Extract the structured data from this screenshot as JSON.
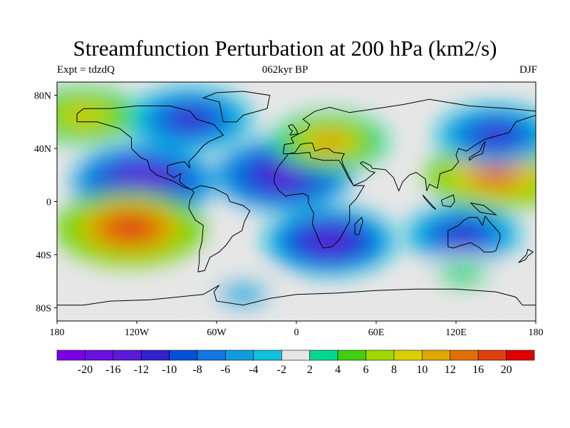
{
  "title": "Streamfunction Perturbation at 200 hPa (km2/s)",
  "left_string": "Expt = tdzdQ",
  "center_string": "062kyr BP",
  "right_string": "DJF",
  "map": {
    "projection": "cylindrical equidistant",
    "lon_range": [
      -180,
      180
    ],
    "lat_range": [
      -90,
      90
    ],
    "coastlines": true
  },
  "lat_ticks": [
    {
      "value": 80,
      "label": "80N"
    },
    {
      "value": 40,
      "label": "40N"
    },
    {
      "value": 0,
      "label": "0"
    },
    {
      "value": -40,
      "label": "40S"
    },
    {
      "value": -80,
      "label": "80S"
    }
  ],
  "lon_ticks": [
    {
      "value": -180,
      "label": "180"
    },
    {
      "value": -120,
      "label": "120W"
    },
    {
      "value": -60,
      "label": "60W"
    },
    {
      "value": 0,
      "label": "0"
    },
    {
      "value": 60,
      "label": "60E"
    },
    {
      "value": 120,
      "label": "120E"
    },
    {
      "value": 180,
      "label": "180"
    }
  ],
  "colorbar": {
    "colors": [
      "#7b00e3",
      "#6a10e0",
      "#5a1ad8",
      "#3020d0",
      "#0050d8",
      "#1078e0",
      "#109ce0",
      "#10c0e0",
      "#e6e6e6",
      "#00d890",
      "#40d010",
      "#a0d800",
      "#d8d000",
      "#e0a800",
      "#e07000",
      "#e04010",
      "#e00000"
    ],
    "labels": [
      "-20",
      "-16",
      "-12",
      "-10",
      "-8",
      "-6",
      "-4",
      "-2",
      "2",
      "4",
      "6",
      "8",
      "10",
      "12",
      "16",
      "20"
    ]
  },
  "field_features": [
    {
      "region": "tropical Pacific / Central America",
      "lon": -115,
      "lat": 15,
      "value": -18
    },
    {
      "region": "tropical Atlantic / Africa",
      "lon": -10,
      "lat": 20,
      "value": -17
    },
    {
      "region": "subtropical South Pacific",
      "lon": -125,
      "lat": -20,
      "value": 19
    },
    {
      "region": "western Pacific / SE Asia",
      "lon": 150,
      "lat": 20,
      "value": 17
    },
    {
      "region": "North Africa / Middle East",
      "lon": 25,
      "lat": 45,
      "value": 12
    },
    {
      "region": "northern Canada / Hudson Bay",
      "lon": -80,
      "lat": 62,
      "value": -14
    },
    {
      "region": "southern Africa / Indian Ocean",
      "lon": 25,
      "lat": -30,
      "value": -16
    },
    {
      "region": "Australia",
      "lon": 125,
      "lat": -25,
      "value": -12
    },
    {
      "region": "North Pacific / Alaska",
      "lon": -160,
      "lat": 65,
      "value": 11
    },
    {
      "region": "East Siberia",
      "lon": 150,
      "lat": 50,
      "value": -13
    },
    {
      "region": "Southern Ocean (Indian)",
      "lon": 125,
      "lat": -55,
      "value": 4
    },
    {
      "region": "Antarctic Peninsula",
      "lon": -40,
      "lat": -70,
      "value": -5
    }
  ]
}
